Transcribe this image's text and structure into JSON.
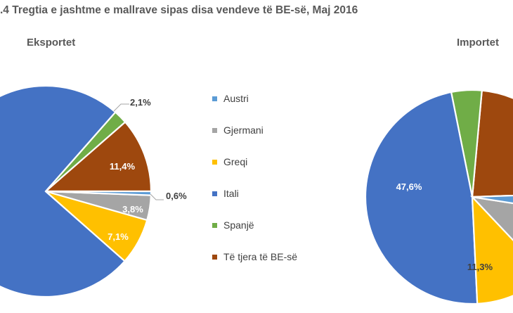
{
  "title": ".4 Tregtia e jashtme  e mallrave sipas disa vendeve të BE-së, Maj 2016",
  "chart_data": [
    {
      "type": "pie",
      "title": "Eksportet",
      "start_angle_deg": 0,
      "direction": "counterclockwise",
      "categories": [
        "Austri",
        "Gjermani",
        "Greqi",
        "Itali",
        "Spanjë",
        "Të tjera të BE-së"
      ],
      "colors": [
        "#5B9BD5",
        "#A5A5A5",
        "#FFC000",
        "#4472C4",
        "#70AD47",
        "#9E480E"
      ],
      "slices": [
        {
          "category": "Të tjera të BE-së",
          "value": 11.4,
          "label": "11,4%"
        },
        {
          "category": "Spanjë",
          "value": 2.1,
          "label": "2,1%"
        },
        {
          "category": "Itali",
          "value": 75.0,
          "label": ""
        },
        {
          "category": "Greqi",
          "value": 7.1,
          "label": "7,1%"
        },
        {
          "category": "Gjermani",
          "value": 3.8,
          "label": "3,8%"
        },
        {
          "category": "Austri",
          "value": 0.6,
          "label": "0,6%"
        }
      ]
    },
    {
      "type": "pie",
      "title": "Importet",
      "start_angle_deg": 2,
      "direction": "counterclockwise",
      "categories": [
        "Austri",
        "Gjermani",
        "Greqi",
        "Itali",
        "Spanjë",
        "Të tjera të BE-së"
      ],
      "colors": [
        "#5B9BD5",
        "#A5A5A5",
        "#FFC000",
        "#4472C4",
        "#70AD47",
        "#9E480E"
      ],
      "slices": [
        {
          "category": "Të tjera të BE-së",
          "value": 23.0,
          "label": ""
        },
        {
          "category": "Spanjë",
          "value": 4.6,
          "label": ""
        },
        {
          "category": "Itali",
          "value": 47.6,
          "label": "47,6%"
        },
        {
          "category": "Greqi",
          "value": 11.3,
          "label": "11,3%"
        },
        {
          "category": "Gjermani",
          "value": 10.5,
          "label": ""
        },
        {
          "category": "Austri",
          "value": 3.0,
          "label": ""
        }
      ]
    }
  ]
}
